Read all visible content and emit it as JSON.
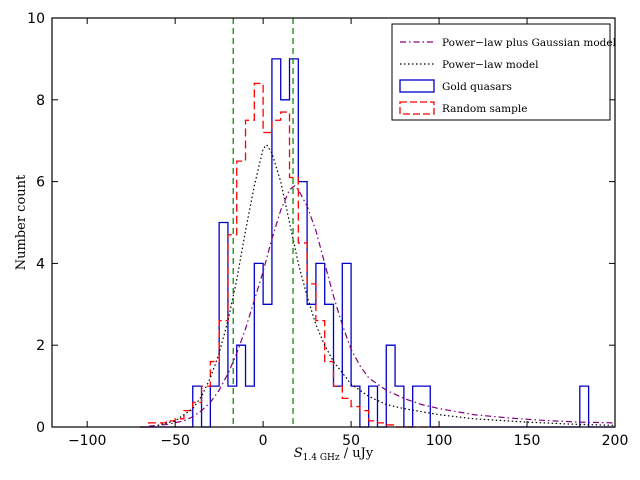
{
  "chart_data": {
    "type": "line",
    "title": "",
    "xlabel": "S_1.4 GHz / uJy",
    "xlabel_main": "S",
    "xlabel_sub": "1.4 GHz",
    "xlabel_unit": " / uJy",
    "ylabel": "Number count",
    "xlim": [
      -120,
      200
    ],
    "ylim": [
      0,
      10
    ],
    "x_ticks": [
      -100,
      -50,
      0,
      50,
      100,
      150,
      200
    ],
    "y_ticks": [
      0,
      2,
      4,
      6,
      8,
      10
    ],
    "grid": false,
    "legend_position": "top-right",
    "vertical_lines": [
      -17,
      17
    ],
    "vertical_line_color": "#008000",
    "histogram_bin_width": 5,
    "series": [
      {
        "name": "Power−law plus Gaussian model",
        "kind": "curve",
        "style": "dashdot",
        "color": "#800080",
        "x": [
          -65,
          -55,
          -45,
          -40,
          -35,
          -30,
          -25,
          -20,
          -15,
          -10,
          -5,
          0,
          5,
          10,
          15,
          18,
          20,
          25,
          30,
          35,
          40,
          45,
          50,
          55,
          60,
          70,
          80,
          90,
          100,
          120,
          140,
          160,
          180,
          200
        ],
        "y": [
          0.02,
          0.06,
          0.15,
          0.25,
          0.4,
          0.6,
          0.9,
          1.3,
          1.8,
          2.4,
          3.1,
          3.8,
          4.6,
          5.3,
          5.8,
          5.9,
          5.8,
          5.4,
          4.8,
          4.0,
          3.2,
          2.5,
          1.9,
          1.5,
          1.2,
          0.9,
          0.7,
          0.55,
          0.45,
          0.3,
          0.22,
          0.16,
          0.12,
          0.1
        ]
      },
      {
        "name": "Power−law model",
        "kind": "curve",
        "style": "dotted",
        "color": "#000000",
        "x": [
          -60,
          -50,
          -40,
          -35,
          -30,
          -25,
          -20,
          -15,
          -10,
          -5,
          0,
          2,
          5,
          10,
          15,
          20,
          25,
          30,
          35,
          40,
          50,
          60,
          70,
          80,
          100,
          120,
          150,
          175,
          200
        ],
        "y": [
          0.04,
          0.15,
          0.45,
          0.75,
          1.2,
          1.8,
          2.6,
          3.6,
          4.8,
          5.9,
          6.8,
          6.9,
          6.7,
          6.0,
          5.0,
          4.0,
          3.2,
          2.5,
          2.0,
          1.6,
          1.05,
          0.75,
          0.55,
          0.45,
          0.3,
          0.2,
          0.12,
          0.07,
          0.04
        ]
      },
      {
        "name": "Gold quasars",
        "kind": "histogram",
        "style": "solid",
        "color": "#0000CC",
        "bin_starts": [
          -70,
          -65,
          -60,
          -55,
          -50,
          -45,
          -40,
          -35,
          -30,
          -25,
          -20,
          -15,
          -10,
          -5,
          0,
          5,
          10,
          15,
          20,
          25,
          30,
          35,
          40,
          45,
          50,
          55,
          60,
          65,
          70,
          75,
          80,
          85,
          90,
          95,
          100,
          105,
          110,
          115,
          120,
          125,
          130,
          135,
          140,
          145,
          150,
          155,
          160,
          165,
          170,
          175,
          180,
          185,
          190,
          195
        ],
        "counts": [
          0,
          0,
          0,
          0,
          0,
          0,
          1,
          0,
          1,
          5,
          1,
          2,
          1,
          4,
          3,
          9,
          8,
          9,
          6,
          3,
          4,
          3,
          1,
          4,
          1,
          0,
          1,
          0,
          2,
          1,
          0,
          1,
          1,
          0,
          0,
          0,
          0,
          0,
          0,
          0,
          0,
          0,
          0,
          0,
          0,
          0,
          0,
          0,
          0,
          0,
          1,
          0,
          0,
          0
        ]
      },
      {
        "name": "Random sample",
        "kind": "histogram",
        "style": "dashed",
        "color": "#FF0000",
        "bin_starts": [
          -70,
          -65,
          -60,
          -55,
          -50,
          -45,
          -40,
          -35,
          -30,
          -25,
          -20,
          -15,
          -10,
          -5,
          0,
          5,
          10,
          15,
          20,
          25,
          30,
          35,
          40,
          45,
          50,
          55,
          60,
          65,
          70,
          75,
          80,
          85,
          90,
          95
        ],
        "counts": [
          0,
          0.1,
          0.1,
          0.15,
          0.2,
          0.4,
          0.6,
          1.0,
          1.6,
          2.6,
          4.7,
          6.5,
          7.5,
          8.4,
          7.2,
          7.5,
          7.7,
          6.1,
          4.5,
          3.5,
          2.6,
          1.6,
          1.0,
          0.7,
          0.5,
          0.4,
          0.15,
          0.1,
          0.05,
          0,
          0,
          0,
          0,
          0
        ]
      }
    ]
  }
}
